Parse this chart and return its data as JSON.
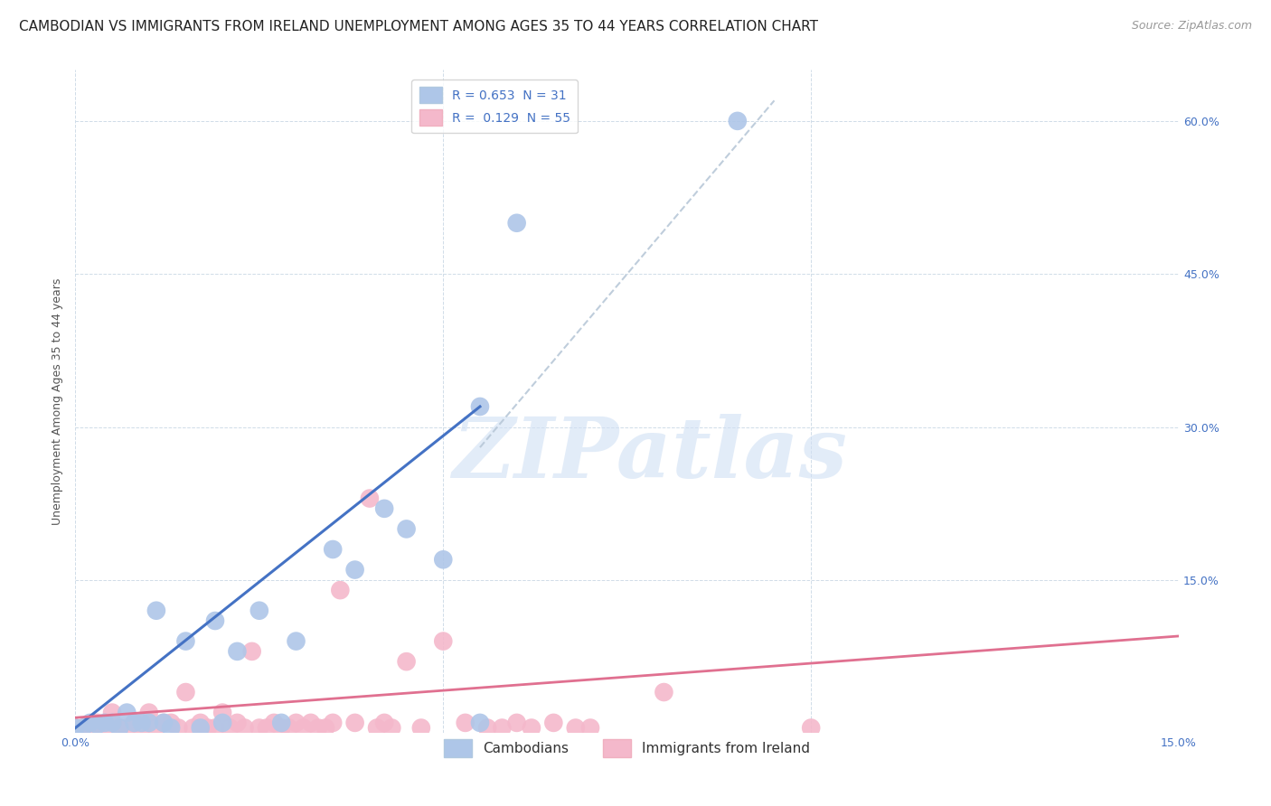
{
  "title": "CAMBODIAN VS IMMIGRANTS FROM IRELAND UNEMPLOYMENT AMONG AGES 35 TO 44 YEARS CORRELATION CHART",
  "source": "Source: ZipAtlas.com",
  "ylabel": "Unemployment Among Ages 35 to 44 years",
  "xlim": [
    0.0,
    0.15
  ],
  "ylim": [
    0.0,
    0.65
  ],
  "cambodian_color": "#aec6e8",
  "cambodian_edge_color": "#aec6e8",
  "ireland_color": "#f4b8cb",
  "ireland_edge_color": "#f4b8cb",
  "cambodian_line_color": "#4472c4",
  "ireland_line_color": "#e07090",
  "diagonal_color": "#b8c8d8",
  "background_color": "#ffffff",
  "grid_color": "#d0dce8",
  "watermark_color": "#d0e0f4",
  "legend_blue_label": "R = 0.653  N = 31",
  "legend_pink_label": "R =  0.129  N = 55",
  "legend_cambodian": "Cambodians",
  "legend_ireland": "Immigrants from Ireland",
  "watermark": "ZIPatlas",
  "title_fontsize": 11,
  "source_fontsize": 9,
  "axis_label_fontsize": 9,
  "tick_fontsize": 9,
  "legend_fontsize": 10,
  "cambodian_scatter_x": [
    0.0,
    0.001,
    0.002,
    0.003,
    0.004,
    0.005,
    0.006,
    0.007,
    0.008,
    0.009,
    0.01,
    0.011,
    0.012,
    0.013,
    0.015,
    0.017,
    0.019,
    0.02,
    0.022,
    0.025,
    0.028,
    0.03,
    0.035,
    0.038,
    0.042,
    0.045,
    0.05,
    0.055,
    0.06,
    0.09,
    0.055
  ],
  "cambodian_scatter_y": [
    0.005,
    0.005,
    0.01,
    0.008,
    0.01,
    0.01,
    0.005,
    0.02,
    0.01,
    0.01,
    0.01,
    0.12,
    0.01,
    0.005,
    0.09,
    0.005,
    0.11,
    0.01,
    0.08,
    0.12,
    0.01,
    0.09,
    0.18,
    0.16,
    0.22,
    0.2,
    0.17,
    0.32,
    0.5,
    0.6,
    0.01
  ],
  "ireland_scatter_x": [
    0.0,
    0.001,
    0.002,
    0.003,
    0.004,
    0.005,
    0.006,
    0.007,
    0.008,
    0.009,
    0.01,
    0.011,
    0.012,
    0.013,
    0.014,
    0.015,
    0.016,
    0.017,
    0.018,
    0.019,
    0.02,
    0.021,
    0.022,
    0.023,
    0.024,
    0.025,
    0.026,
    0.027,
    0.028,
    0.029,
    0.03,
    0.031,
    0.032,
    0.033,
    0.034,
    0.035,
    0.036,
    0.038,
    0.04,
    0.041,
    0.042,
    0.043,
    0.045,
    0.047,
    0.05,
    0.053,
    0.056,
    0.058,
    0.06,
    0.062,
    0.065,
    0.068,
    0.07,
    0.08,
    0.1
  ],
  "ireland_scatter_y": [
    0.005,
    0.005,
    0.005,
    0.01,
    0.005,
    0.02,
    0.005,
    0.005,
    0.01,
    0.005,
    0.02,
    0.005,
    0.01,
    0.01,
    0.005,
    0.04,
    0.005,
    0.01,
    0.005,
    0.005,
    0.02,
    0.005,
    0.01,
    0.005,
    0.08,
    0.005,
    0.005,
    0.01,
    0.005,
    0.005,
    0.01,
    0.005,
    0.01,
    0.005,
    0.005,
    0.01,
    0.14,
    0.01,
    0.23,
    0.005,
    0.01,
    0.005,
    0.07,
    0.005,
    0.09,
    0.01,
    0.005,
    0.005,
    0.01,
    0.005,
    0.01,
    0.005,
    0.005,
    0.04,
    0.005
  ],
  "cambodian_line_x": [
    0.0,
    0.055
  ],
  "cambodian_line_y": [
    0.005,
    0.32
  ],
  "ireland_line_x": [
    0.0,
    0.15
  ],
  "ireland_line_y": [
    0.015,
    0.095
  ],
  "diag_line_x": [
    0.055,
    0.095
  ],
  "diag_line_y": [
    0.28,
    0.62
  ]
}
